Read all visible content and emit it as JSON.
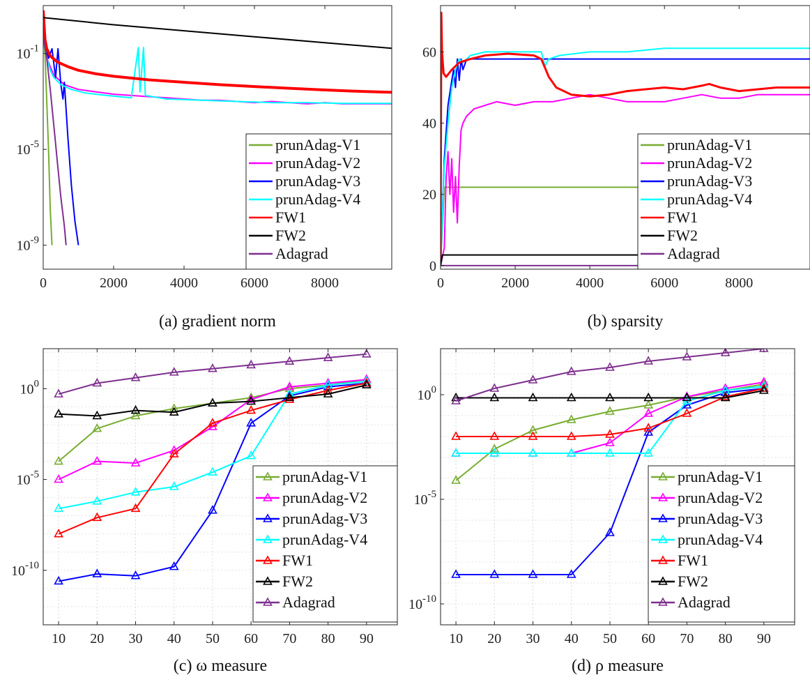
{
  "colors": {
    "prunAdag-V1": "#77ac30",
    "prunAdag-V2": "#ff00ff",
    "prunAdag-V3": "#0000ff",
    "prunAdag-V4": "#00ffff",
    "FW1": "#ff0000",
    "FW2": "#000000",
    "Adagrad": "#7e2f8e"
  },
  "chart_data": [
    {
      "id": "a",
      "type": "line",
      "caption": "(a) gradient norm",
      "yscale": "log",
      "xlim": [
        0,
        9900
      ],
      "ylim_exp": [
        -10,
        1
      ],
      "xticks": [
        0,
        2000,
        4000,
        6000,
        8000
      ],
      "xtick_labels": [
        "0",
        "2000",
        "4000",
        "6000",
        "8000"
      ],
      "yticks_exp": [
        -9,
        -5,
        -1
      ],
      "ytick_labels": [
        "10-9",
        "10-5",
        "10-1"
      ],
      "legend_position": "lower-right",
      "series": [
        {
          "name": "prunAdag-V1",
          "x": [
            0,
            50,
            100,
            150,
            200,
            250
          ],
          "y_exp": [
            -0.2,
            -1,
            -3,
            -5,
            -7.5,
            -9
          ]
        },
        {
          "name": "prunAdag-V2",
          "x": [
            0,
            100,
            300,
            600,
            1000,
            1500,
            2000,
            2500,
            3000,
            3500,
            4000,
            4500,
            5000,
            5500,
            6000,
            6500,
            7000,
            7500,
            8000,
            8500,
            9000,
            9500,
            9900
          ],
          "y_exp": [
            -0.3,
            -1.2,
            -1.9,
            -2.3,
            -2.5,
            -2.6,
            -2.7,
            -2.75,
            -2.8,
            -2.85,
            -2.9,
            -2.95,
            -2.95,
            -3.0,
            -3.05,
            -3.0,
            -3.05,
            -3.1,
            -3.05,
            -3.1,
            -3.1,
            -3.1,
            -3.1
          ]
        },
        {
          "name": "prunAdag-V3",
          "x": [
            0,
            150,
            250,
            350,
            420,
            500,
            560,
            600,
            700,
            800,
            900,
            1000
          ],
          "y_exp": [
            -0.3,
            -1.2,
            -0.8,
            -2.0,
            -0.8,
            -2.3,
            -2.9,
            -2.2,
            -4.5,
            -6.5,
            -8.0,
            -9.0
          ]
        },
        {
          "name": "prunAdag-V4",
          "x": [
            0,
            100,
            200,
            300,
            500,
            800,
            1200,
            1800,
            2500,
            2700,
            2750,
            2850,
            2900,
            3500,
            4500,
            5500,
            6500,
            7500,
            8500,
            9900
          ],
          "y_exp": [
            -0.3,
            -1.2,
            -1.7,
            -2.0,
            -2.3,
            -2.5,
            -2.65,
            -2.75,
            -2.85,
            -0.75,
            -2.6,
            -0.75,
            -2.75,
            -2.9,
            -2.95,
            -3.0,
            -3.05,
            -3.05,
            -3.08,
            -3.08
          ]
        },
        {
          "name": "FW1",
          "x": [
            0,
            50,
            100,
            200,
            400,
            700,
            1000,
            1500,
            2000,
            3000,
            4000,
            5000,
            6000,
            7000,
            8000,
            9000,
            9900
          ],
          "y_exp": [
            0.8,
            -0.4,
            -0.8,
            -1.1,
            -1.35,
            -1.55,
            -1.7,
            -1.85,
            -1.95,
            -2.1,
            -2.2,
            -2.3,
            -2.38,
            -2.45,
            -2.52,
            -2.58,
            -2.62
          ]
        },
        {
          "name": "FW2",
          "x": [
            0,
            2000,
            4000,
            6000,
            8000,
            9900
          ],
          "y_exp": [
            0.5,
            0.2,
            -0.05,
            -0.3,
            -0.55,
            -0.78
          ]
        },
        {
          "name": "Adagrad",
          "x": [
            0,
            100,
            200,
            300,
            400,
            500,
            600,
            650
          ],
          "y_exp": [
            -0.3,
            -1.2,
            -2.5,
            -4.0,
            -5.5,
            -7.0,
            -8.2,
            -9.0
          ]
        }
      ]
    },
    {
      "id": "b",
      "type": "line",
      "caption": "(b) sparsity",
      "yscale": "linear",
      "xlim": [
        0,
        9900
      ],
      "ylim": [
        -1,
        73
      ],
      "xticks": [
        0,
        2000,
        4000,
        6000,
        8000
      ],
      "xtick_labels": [
        "0",
        "2000",
        "4000",
        "6000",
        "8000"
      ],
      "yticks": [
        0,
        20,
        40,
        60
      ],
      "ytick_labels": [
        "0",
        "20",
        "40",
        "60"
      ],
      "legend_position": "lower-right",
      "series": [
        {
          "name": "prunAdag-V1",
          "x": [
            0,
            100,
            200,
            300,
            9900
          ],
          "y": [
            0,
            22,
            22,
            22,
            22
          ]
        },
        {
          "name": "prunAdag-V2",
          "x": [
            0,
            100,
            150,
            200,
            250,
            300,
            350,
            400,
            450,
            500,
            550,
            600,
            700,
            900,
            1200,
            1500,
            2000,
            2500,
            3000,
            3500,
            4000,
            4500,
            5000,
            5500,
            6000,
            6500,
            7000,
            7500,
            8000,
            8500,
            9000,
            9500,
            9900
          ],
          "y": [
            0,
            5,
            25,
            32,
            20,
            30,
            15,
            25,
            12,
            28,
            38,
            40,
            42,
            44,
            45,
            46,
            45,
            46,
            46,
            47,
            48,
            47,
            46,
            46,
            46,
            47,
            48,
            47,
            47,
            48,
            48,
            48,
            48
          ]
        },
        {
          "name": "prunAdag-V3",
          "x": [
            0,
            100,
            200,
            300,
            350,
            400,
            450,
            500,
            550,
            600,
            700,
            1000,
            9900
          ],
          "y": [
            0,
            30,
            45,
            52,
            55,
            50,
            58,
            52,
            58,
            55,
            58,
            58,
            58
          ]
        },
        {
          "name": "prunAdag-V4",
          "x": [
            0,
            100,
            200,
            300,
            400,
            500,
            600,
            800,
            1200,
            2000,
            2700,
            2800,
            2900,
            3200,
            4000,
            5000,
            6000,
            7000,
            8000,
            9000,
            9900
          ],
          "y": [
            0,
            28,
            40,
            50,
            55,
            58,
            57,
            59,
            60,
            60,
            60,
            56,
            58,
            59,
            60,
            60,
            61,
            61,
            61,
            61,
            61
          ]
        },
        {
          "name": "FW1",
          "x": [
            0,
            20,
            40,
            80,
            150,
            300,
            500,
            800,
            1200,
            1800,
            2500,
            2700,
            2900,
            3100,
            3500,
            4000,
            4500,
            5000,
            5500,
            6000,
            6500,
            7000,
            7200,
            7500,
            8000,
            9000,
            9900
          ],
          "y": [
            0,
            71,
            60,
            54,
            53,
            55,
            57,
            58,
            59,
            59.5,
            59,
            58,
            53,
            50,
            48,
            47.5,
            48,
            49,
            49.5,
            50,
            49.5,
            50.5,
            51,
            50,
            49,
            50,
            50
          ]
        },
        {
          "name": "FW2",
          "x": [
            0,
            50,
            100,
            9900
          ],
          "y": [
            0,
            3,
            3,
            3
          ]
        },
        {
          "name": "Adagrad",
          "x": [
            0,
            9900
          ],
          "y": [
            0,
            0
          ]
        }
      ]
    },
    {
      "id": "c",
      "type": "line",
      "caption": "(c) ω measure",
      "yscale": "log",
      "xlim": [
        6,
        98
      ],
      "ylim_exp": [
        -13,
        2.2
      ],
      "xticks": [
        10,
        20,
        30,
        40,
        50,
        60,
        70,
        80,
        90
      ],
      "xtick_labels": [
        "10",
        "20",
        "30",
        "40",
        "50",
        "60",
        "70",
        "80",
        "90"
      ],
      "yticks_exp": [
        -10,
        -5,
        0
      ],
      "ytick_labels": [
        "10-10",
        "10-5",
        "100"
      ],
      "legend_position": "lower-right",
      "categories": [
        10,
        20,
        30,
        40,
        50,
        60,
        70,
        80,
        90
      ],
      "series": [
        {
          "name": "prunAdag-V1",
          "y_exp": [
            -4.0,
            -2.2,
            -1.5,
            -1.1,
            -0.8,
            -0.5,
            0.0,
            0.2,
            0.5
          ]
        },
        {
          "name": "prunAdag-V2",
          "y_exp": [
            -5.0,
            -4.0,
            -4.1,
            -3.4,
            -2.1,
            -0.6,
            0.1,
            0.3,
            0.5
          ]
        },
        {
          "name": "prunAdag-V3",
          "y_exp": [
            -10.6,
            -10.2,
            -10.3,
            -9.8,
            -6.7,
            -1.9,
            -0.4,
            0.1,
            0.3
          ]
        },
        {
          "name": "prunAdag-V4",
          "y_exp": [
            -6.6,
            -6.2,
            -5.7,
            -5.4,
            -4.6,
            -3.7,
            -0.3,
            0.2,
            0.4
          ]
        },
        {
          "name": "FW1",
          "y_exp": [
            -8.0,
            -7.1,
            -6.6,
            -3.6,
            -1.9,
            -1.2,
            -0.6,
            -0.1,
            0.3
          ]
        },
        {
          "name": "FW2",
          "y_exp": [
            -1.4,
            -1.5,
            -1.2,
            -1.3,
            -0.8,
            -0.7,
            -0.5,
            -0.3,
            0.2
          ]
        },
        {
          "name": "Adagrad",
          "y_exp": [
            -0.3,
            0.3,
            0.6,
            0.9,
            1.1,
            1.3,
            1.5,
            1.7,
            1.9
          ]
        }
      ]
    },
    {
      "id": "d",
      "type": "line",
      "caption": "(d) ρ measure",
      "yscale": "log",
      "xlim": [
        6,
        98
      ],
      "ylim_exp": [
        -11,
        2.2
      ],
      "xticks": [
        10,
        20,
        30,
        40,
        50,
        60,
        70,
        80,
        90
      ],
      "xtick_labels": [
        "10",
        "20",
        "30",
        "40",
        "50",
        "60",
        "70",
        "80",
        "90"
      ],
      "yticks_exp": [
        -10,
        -5,
        0
      ],
      "ytick_labels": [
        "10-10",
        "10-5",
        "100"
      ],
      "legend_position": "lower-right",
      "categories": [
        10,
        20,
        30,
        40,
        50,
        60,
        70,
        80,
        90
      ],
      "series": [
        {
          "name": "prunAdag-V1",
          "y_exp": [
            -4.1,
            -2.6,
            -1.7,
            -1.2,
            -0.8,
            -0.5,
            -0.1,
            0.2,
            0.5
          ]
        },
        {
          "name": "prunAdag-V2",
          "y_exp": [
            -2.8,
            -2.8,
            -2.8,
            -2.8,
            -2.3,
            -0.9,
            -0.1,
            0.3,
            0.6
          ]
        },
        {
          "name": "prunAdag-V3",
          "y_exp": [
            -8.6,
            -8.6,
            -8.6,
            -8.6,
            -6.6,
            -1.8,
            -0.5,
            0.1,
            0.3
          ]
        },
        {
          "name": "prunAdag-V4",
          "y_exp": [
            -2.8,
            -2.8,
            -2.8,
            -2.8,
            -2.8,
            -2.8,
            -0.3,
            0.2,
            0.4
          ]
        },
        {
          "name": "FW1",
          "y_exp": [
            -2.0,
            -2.0,
            -2.0,
            -2.0,
            -1.9,
            -1.6,
            -0.9,
            -0.1,
            0.3
          ]
        },
        {
          "name": "FW2",
          "y_exp": [
            -0.15,
            -0.15,
            -0.15,
            -0.15,
            -0.15,
            -0.15,
            -0.15,
            -0.15,
            0.2
          ]
        },
        {
          "name": "Adagrad",
          "y_exp": [
            -0.3,
            0.3,
            0.7,
            1.1,
            1.3,
            1.6,
            1.8,
            2.0,
            2.2
          ]
        }
      ]
    }
  ]
}
